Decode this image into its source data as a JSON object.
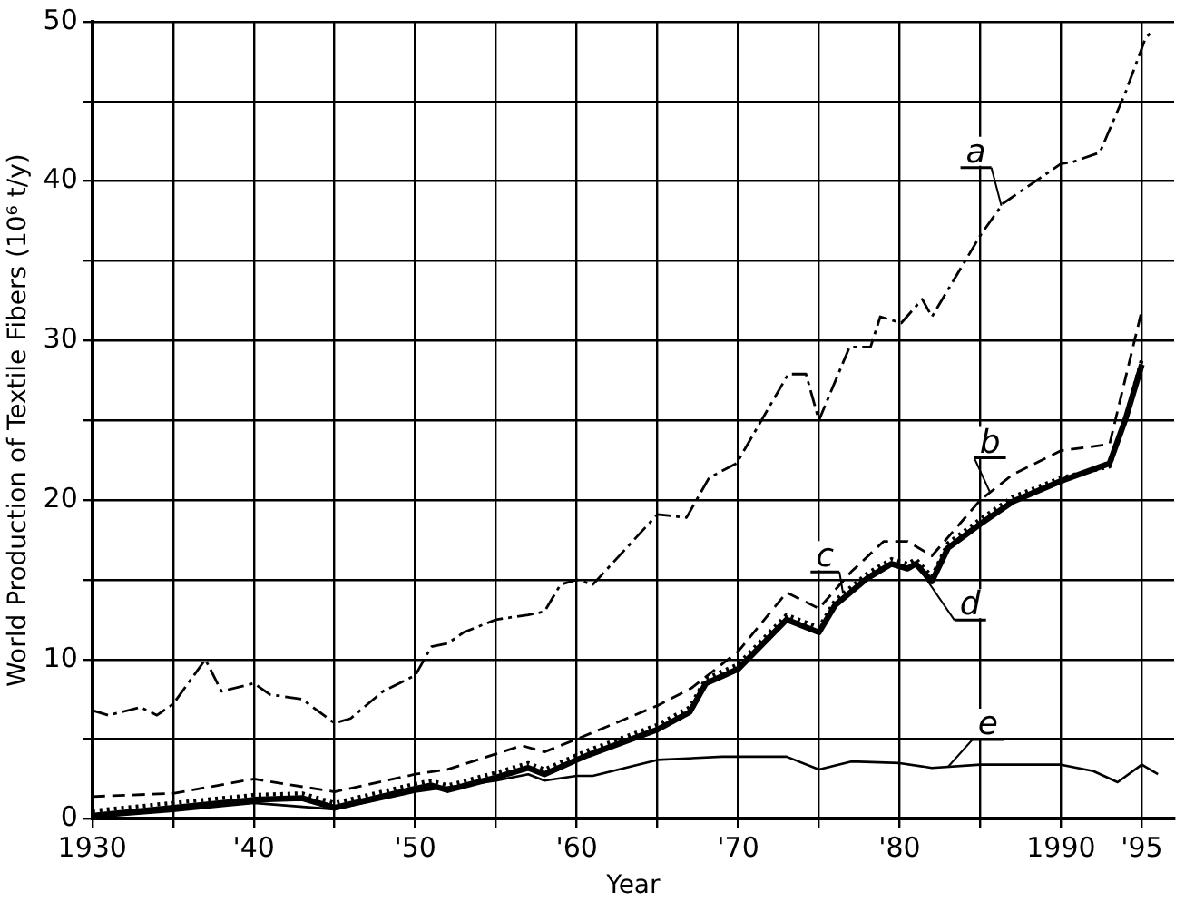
{
  "chart_data": {
    "type": "line",
    "xlabel": "Year",
    "ylabel": "World Production of Textile Fibers (10⁶ t/y)",
    "xlim": [
      1930,
      1997
    ],
    "ylim": [
      0,
      50
    ],
    "xticks": [
      {
        "value": 1930,
        "label": "1930"
      },
      {
        "value": 1935,
        "label": null
      },
      {
        "value": 1940,
        "label": "'40"
      },
      {
        "value": 1945,
        "label": null
      },
      {
        "value": 1950,
        "label": "'50"
      },
      {
        "value": 1955,
        "label": null
      },
      {
        "value": 1960,
        "label": "'60"
      },
      {
        "value": 1965,
        "label": null
      },
      {
        "value": 1970,
        "label": "'70"
      },
      {
        "value": 1975,
        "label": null
      },
      {
        "value": 1980,
        "label": "'80"
      },
      {
        "value": 1985,
        "label": null
      },
      {
        "value": 1990,
        "label": "1990"
      },
      {
        "value": 1995,
        "label": "'95"
      }
    ],
    "yticks": [
      0,
      {
        "value": 5,
        "label": null
      },
      10,
      {
        "value": 15,
        "label": null
      },
      20,
      {
        "value": 25,
        "label": null
      },
      30,
      {
        "value": 35,
        "label": null
      },
      40,
      {
        "value": 45,
        "label": null
      },
      50
    ],
    "grid": true,
    "marker": "none",
    "series": [
      {
        "name": "a",
        "color": "#000000",
        "line_style": "dashdot",
        "x": [
          1930,
          1931,
          1933,
          1934,
          1935,
          1937,
          1938,
          1940,
          1941,
          1943,
          1945,
          1946,
          1948,
          1950,
          1951,
          1952,
          1953,
          1955,
          1957,
          1958,
          1959,
          1960,
          1961,
          1965,
          1966.8,
          1968.2,
          1969.9,
          1973.1,
          1974.2,
          1975,
          1976.9,
          1978.2,
          1978.8,
          1980.1,
          1981.4,
          1982,
          1985,
          1986.4,
          1990,
          1990.7,
          1992.4,
          1994,
          1995.2,
          1995.6
        ],
        "values": [
          6.8,
          6.5,
          7.0,
          6.5,
          7.2,
          10.0,
          8.0,
          8.5,
          7.8,
          7.5,
          6.0,
          6.3,
          8.0,
          9.0,
          10.8,
          11.0,
          11.7,
          12.5,
          12.8,
          13.0,
          14.7,
          15.0,
          14.7,
          19.1,
          18.9,
          21.4,
          22.3,
          27.9,
          27.9,
          25.0,
          29.6,
          29.6,
          31.5,
          31.1,
          32.6,
          31.5,
          36.6,
          38.6,
          41.1,
          41.2,
          41.8,
          45.6,
          48.9,
          49.4
        ]
      },
      {
        "name": "b",
        "color": "#000000",
        "line_style": "dashed",
        "x": [
          1930,
          1935,
          1940,
          1945,
          1950,
          1952,
          1956.6,
          1958,
          1960,
          1965,
          1967.1,
          1970,
          1973,
          1975,
          1977,
          1979,
          1980.5,
          1982,
          1985,
          1987,
          1990,
          1993,
          1995
        ],
        "values": [
          1.4,
          1.6,
          2.5,
          1.7,
          2.8,
          3.1,
          4.6,
          4.2,
          5.0,
          7.1,
          8.2,
          10.5,
          14.2,
          13.2,
          15.5,
          17.4,
          17.4,
          16.5,
          20.0,
          21.6,
          23.1,
          23.5,
          31.9
        ]
      },
      {
        "name": "c",
        "color": "#000000",
        "line_style": "dotted",
        "x": [
          1930,
          1935,
          1940,
          1943,
          1945,
          1950,
          1951,
          1952,
          1955,
          1957,
          1958,
          1960,
          1960.7,
          1965,
          1967,
          1968,
          1970,
          1973,
          1975,
          1976,
          1978,
          1979.5,
          1980.5,
          1981,
          1982,
          1983,
          1985,
          1987,
          1990,
          1993,
          1994,
          1995
        ],
        "values": [
          0.5,
          1.0,
          1.5,
          1.6,
          1.0,
          2.2,
          2.4,
          2.1,
          2.9,
          3.5,
          3.1,
          4.0,
          4.3,
          5.9,
          7.0,
          8.8,
          9.7,
          12.8,
          12.0,
          13.7,
          15.4,
          16.3,
          16.0,
          16.3,
          15.2,
          17.3,
          18.8,
          20.2,
          21.4,
          22.1,
          25.2,
          28.8
        ]
      },
      {
        "name": "d",
        "color": "#000000",
        "line_style": "solid",
        "x": [
          1930,
          1935,
          1940,
          1943,
          1945,
          1950,
          1951,
          1952,
          1955,
          1957,
          1958,
          1960,
          1960.7,
          1965,
          1967,
          1968,
          1970,
          1973,
          1975,
          1976,
          1978,
          1979.5,
          1980.5,
          1981,
          1982,
          1983,
          1985,
          1987,
          1990,
          1993,
          1994,
          1995
        ],
        "values": [
          0.2,
          0.7,
          1.2,
          1.3,
          0.7,
          1.9,
          2.1,
          1.8,
          2.6,
          3.2,
          2.8,
          3.7,
          4.0,
          5.6,
          6.7,
          8.5,
          9.4,
          12.5,
          11.7,
          13.4,
          15.1,
          16.0,
          15.7,
          16.0,
          14.9,
          17.0,
          18.5,
          19.9,
          21.2,
          22.3,
          25.1,
          28.5
        ]
      },
      {
        "name": "e",
        "color": "#000000",
        "line_style": "solid",
        "x": [
          1930,
          1935,
          1940,
          1945,
          1950,
          1955,
          1957,
          1958,
          1960,
          1961,
          1965,
          1969,
          1973,
          1975,
          1977,
          1980,
          1982,
          1985,
          1990,
          1992,
          1993.5,
          1995,
          1996
        ],
        "values": [
          0.1,
          0.5,
          1.0,
          0.6,
          1.7,
          2.4,
          2.8,
          2.4,
          2.7,
          2.7,
          3.7,
          3.9,
          3.9,
          3.1,
          3.6,
          3.5,
          3.2,
          3.4,
          3.4,
          3.0,
          2.3,
          3.4,
          2.8
        ]
      }
    ]
  }
}
